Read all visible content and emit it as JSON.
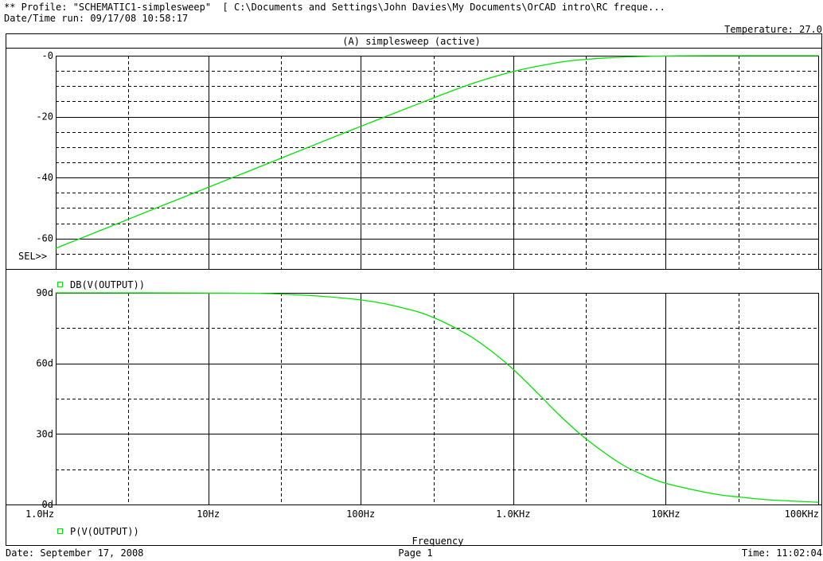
{
  "header": {
    "profile_line": "** Profile: \"SCHEMATIC1-simplesweep\"  [ C:\\Documents and Settings\\John Davies\\My Documents\\OrCAD intro\\RC freque...",
    "datetime_run": "Date/Time run: 09/17/08 10:58:17",
    "temperature": "Temperature: 27.0"
  },
  "plot_title": "(A) simplesweep (active)",
  "footer": {
    "date": "Date: September 17, 2008",
    "page": "Page 1",
    "time": "Time: 11:02:04"
  },
  "sel_marker": "SEL>>",
  "colors": {
    "trace": "#00e600",
    "grid": "#000000",
    "background": "#ffffff"
  },
  "chart_data": [
    {
      "type": "line",
      "title": "",
      "xlabel": "Frequency",
      "ylabel": "",
      "x_scale": "log",
      "xlim": [
        1,
        100000
      ],
      "x_ticks": [
        1,
        10,
        100,
        1000,
        10000,
        100000
      ],
      "x_tick_labels": [
        "1.0Hz",
        "10Hz",
        "100Hz",
        "1.0KHz",
        "10KHz",
        "100KHz"
      ],
      "ylim": [
        -70,
        0
      ],
      "y_ticks": [
        0,
        -20,
        -40,
        -60
      ],
      "y_tick_labels": [
        "-0",
        "-20",
        "-40",
        "-60"
      ],
      "grid": true,
      "series": [
        {
          "name": "DB(V(OUTPUT))",
          "x": [
            1,
            2,
            5,
            10,
            20,
            50,
            100,
            200,
            500,
            1000,
            2000,
            3000,
            5000,
            10000,
            20000,
            50000,
            100000
          ],
          "y": [
            -63.2,
            -57.2,
            -49.2,
            -43.2,
            -37.2,
            -29.2,
            -23.2,
            -17.3,
            -9.7,
            -5.2,
            -2.2,
            -1.2,
            -0.5,
            -0.1,
            0,
            0,
            0
          ]
        }
      ]
    },
    {
      "type": "line",
      "title": "",
      "xlabel": "Frequency",
      "ylabel": "",
      "x_scale": "log",
      "xlim": [
        1,
        100000
      ],
      "x_ticks": [
        1,
        10,
        100,
        1000,
        10000,
        100000
      ],
      "x_tick_labels": [
        "1.0Hz",
        "10Hz",
        "100Hz",
        "1.0KHz",
        "10KHz",
        "100KHz"
      ],
      "ylim": [
        0,
        90
      ],
      "y_ticks": [
        90,
        60,
        30,
        0
      ],
      "y_tick_labels": [
        "90d",
        "60d",
        "30d",
        "0d"
      ],
      "grid": true,
      "series": [
        {
          "name": "P(V(OUTPUT))",
          "x": [
            1,
            10,
            30,
            100,
            200,
            300,
            500,
            700,
            1000,
            1500,
            2000,
            3000,
            5000,
            7000,
            10000,
            20000,
            30000,
            50000,
            100000
          ],
          "y": [
            90,
            89.9,
            89.5,
            87.0,
            83.2,
            79.5,
            72.3,
            65.8,
            57.5,
            46.3,
            38.1,
            27.9,
            17.6,
            12.8,
            9.0,
            4.7,
            3.2,
            1.9,
            0.95
          ]
        }
      ]
    }
  ]
}
